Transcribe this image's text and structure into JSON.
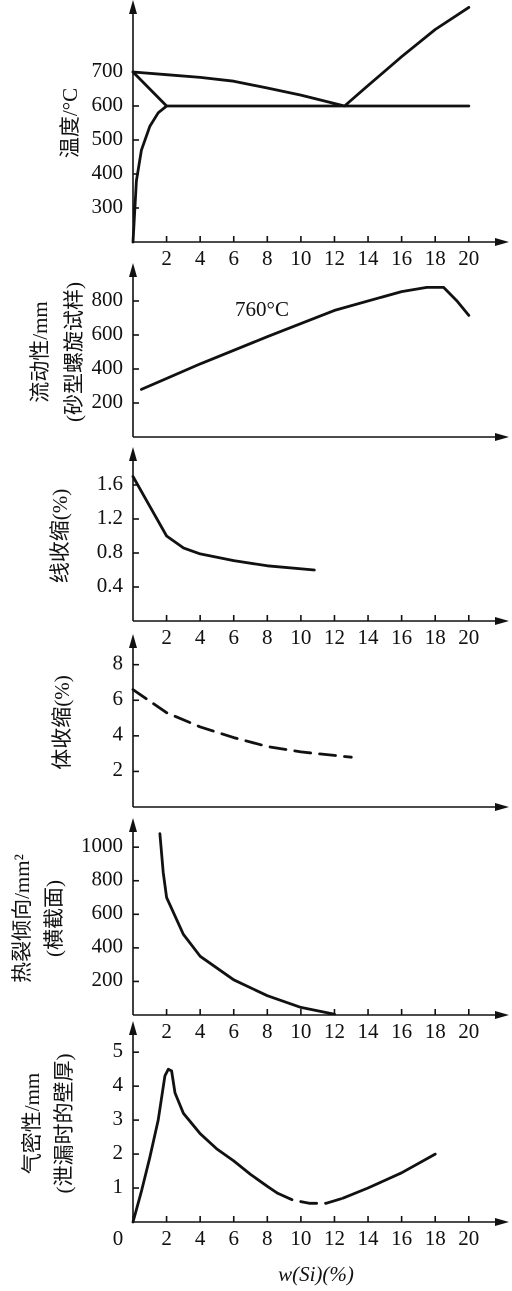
{
  "chart_data": [
    {
      "type": "line",
      "ylabel": [
        "温度/°C"
      ],
      "xlim": [
        0,
        21.8
      ],
      "ylim": [
        200,
        900
      ],
      "yticks": [
        300,
        400,
        500,
        600,
        700
      ],
      "xticks": [
        2,
        4,
        6,
        8,
        10,
        12,
        14,
        16,
        18,
        20
      ],
      "series": [
        {
          "color": "#111111",
          "dash": false,
          "x": [
            0,
            2,
            4,
            6,
            8,
            10,
            12.6
          ],
          "values": [
            700,
            692,
            684,
            673,
            653,
            632,
            600
          ]
        },
        {
          "color": "#111111",
          "dash": false,
          "x": [
            0,
            2
          ],
          "values": [
            700,
            600
          ]
        },
        {
          "color": "#111111",
          "dash": false,
          "x": [
            0,
            0.2,
            0.5,
            1,
            1.5,
            2
          ],
          "values": [
            200,
            380,
            470,
            540,
            580,
            600
          ]
        },
        {
          "color": "#111111",
          "dash": false,
          "x": [
            2,
            20
          ],
          "values": [
            600,
            600
          ]
        },
        {
          "color": "#111111",
          "dash": false,
          "x": [
            12.6,
            14,
            16,
            18,
            20
          ],
          "values": [
            600,
            660,
            745,
            825,
            890
          ]
        }
      ]
    },
    {
      "type": "line",
      "ylabel": [
        "流动性/mm",
        "(砂型螺旋试样)"
      ],
      "annotation": "760°C",
      "xlim": [
        0,
        21.8
      ],
      "ylim": [
        0,
        1000
      ],
      "yticks": [
        200,
        400,
        600,
        800
      ],
      "series": [
        {
          "color": "#111111",
          "dash": false,
          "x": [
            0.5,
            4,
            8,
            12,
            16,
            17.5,
            18.5,
            19.3,
            20
          ],
          "values": [
            280,
            430,
            590,
            745,
            855,
            880,
            880,
            800,
            715
          ]
        }
      ]
    },
    {
      "type": "line",
      "ylabel": [
        "线收缩(%)"
      ],
      "xlim": [
        0,
        21.8
      ],
      "ylim": [
        0,
        2
      ],
      "yticks": [
        0.4,
        0.8,
        1.2,
        1.6
      ],
      "xticks": [
        2,
        4,
        6,
        8,
        10,
        12,
        14,
        16,
        18,
        20
      ],
      "series": [
        {
          "color": "#111111",
          "dash": false,
          "x": [
            0,
            1,
            2,
            3,
            4,
            6,
            8,
            10.8
          ],
          "values": [
            1.7,
            1.35,
            1.0,
            0.86,
            0.79,
            0.71,
            0.65,
            0.6
          ]
        }
      ]
    },
    {
      "type": "line",
      "ylabel": [
        "体收缩(%)"
      ],
      "xlim": [
        0,
        21.8
      ],
      "ylim": [
        0,
        9.5
      ],
      "yticks": [
        2,
        4,
        6,
        8
      ],
      "series": [
        {
          "color": "#111111",
          "dash": true,
          "x": [
            0,
            2,
            4,
            6,
            8,
            10,
            13
          ],
          "values": [
            6.6,
            5.3,
            4.5,
            3.9,
            3.4,
            3.1,
            2.8
          ]
        }
      ]
    },
    {
      "type": "line",
      "ylabel": [
        "热裂倾向/mm²",
        "(横截面)"
      ],
      "xlim": [
        0,
        21.8
      ],
      "ylim": [
        0,
        1150
      ],
      "yticks": [
        200,
        400,
        600,
        800,
        1000
      ],
      "xticks": [
        2,
        4,
        6,
        8,
        10,
        12,
        14,
        16,
        18,
        20
      ],
      "series": [
        {
          "color": "#111111",
          "dash": false,
          "x": [
            1.6,
            1.8,
            2,
            3,
            4,
            6,
            8,
            10,
            12
          ],
          "values": [
            1080,
            850,
            700,
            480,
            350,
            210,
            115,
            45,
            5
          ]
        }
      ]
    },
    {
      "type": "line",
      "ylabel": [
        "气密性/mm",
        "(泄漏时的壁厚)"
      ],
      "xlabel": "w(Si)(%)",
      "xlim": [
        0,
        21.8
      ],
      "ylim": [
        0,
        5.8
      ],
      "yticks": [
        1,
        2,
        3,
        4,
        5
      ],
      "xticks": [
        0,
        2,
        4,
        6,
        8,
        10,
        12,
        14,
        16,
        18,
        20
      ],
      "series": [
        {
          "color": "#111111",
          "dash": false,
          "x": [
            0,
            0.5,
            1,
            1.5,
            1.9,
            2.1,
            2.3,
            2.5,
            3,
            4,
            5,
            6,
            7,
            8,
            8.6
          ],
          "values": [
            0,
            0.9,
            1.9,
            3.0,
            4.3,
            4.5,
            4.45,
            3.8,
            3.2,
            2.6,
            2.15,
            1.8,
            1.4,
            1.05,
            0.85
          ]
        },
        {
          "color": "#111111",
          "dash": true,
          "x": [
            8.6,
            9.5,
            10.5,
            11.5,
            12.5
          ],
          "values": [
            0.85,
            0.65,
            0.55,
            0.55,
            0.7
          ]
        },
        {
          "color": "#111111",
          "dash": false,
          "x": [
            12.5,
            14,
            16,
            18
          ],
          "values": [
            0.7,
            1.0,
            1.45,
            2.0
          ]
        }
      ]
    }
  ]
}
